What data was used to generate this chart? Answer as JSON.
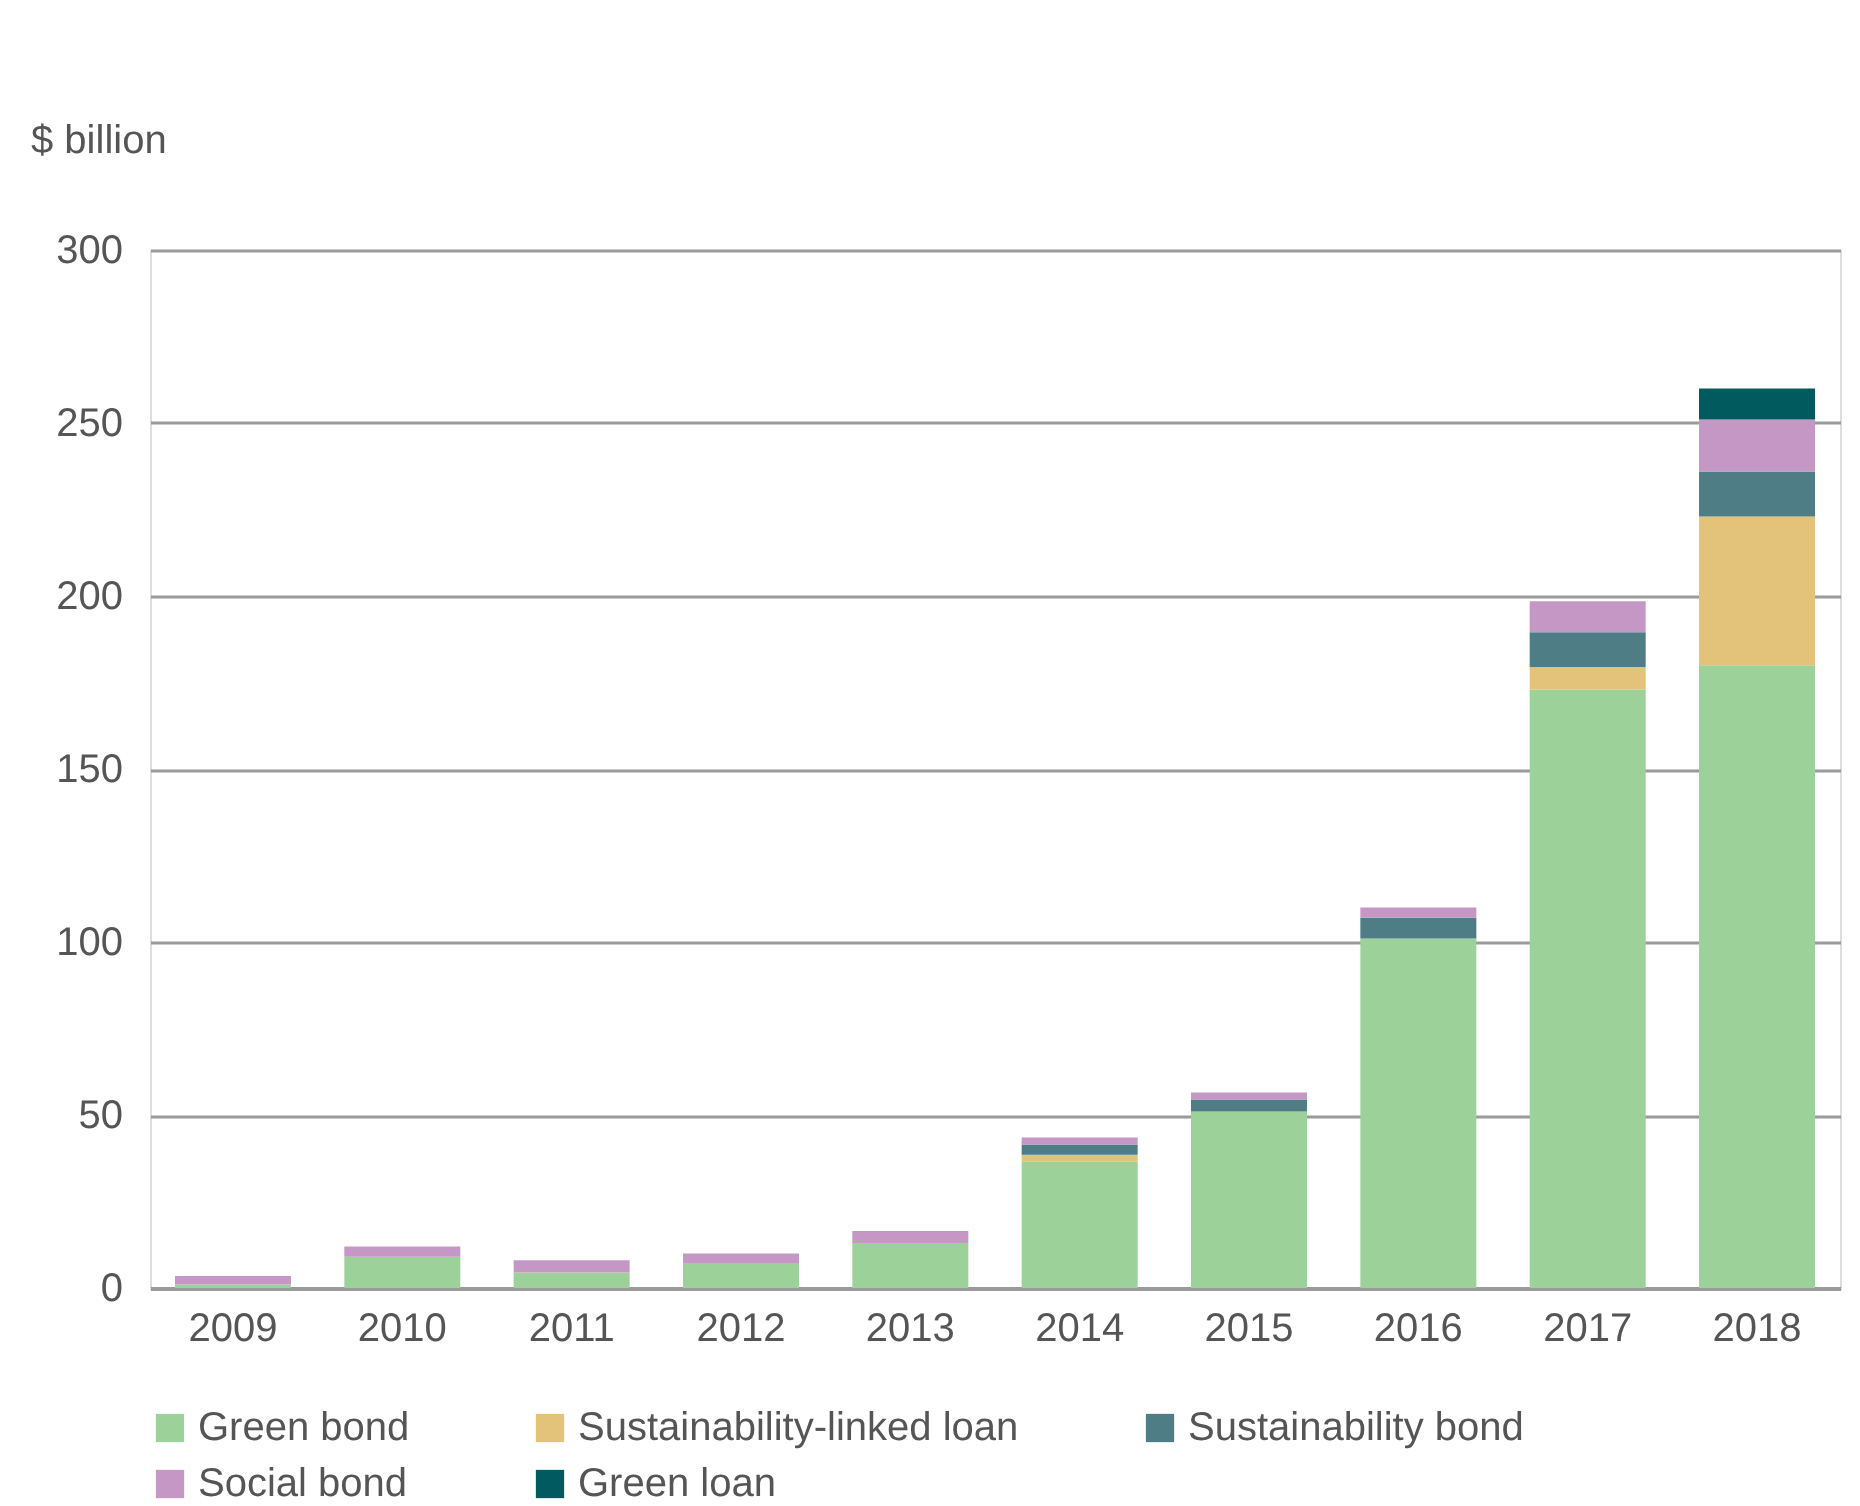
{
  "chart_data": {
    "type": "bar",
    "stacked": true,
    "ylabel": "$ billion",
    "categories": [
      "2009",
      "2010",
      "2011",
      "2012",
      "2013",
      "2014",
      "2015",
      "2016",
      "2017",
      "2018"
    ],
    "series": [
      {
        "name": "Green bond",
        "color": "#9dd19a",
        "values": [
          1,
          9,
          4.5,
          7,
          13,
          36.5,
          51,
          101,
          173,
          180
        ]
      },
      {
        "name": "Sustainability-linked loan",
        "color": "#e3c27a",
        "values": [
          0,
          0,
          0,
          0,
          0,
          2,
          0,
          0,
          6.5,
          43
        ]
      },
      {
        "name": "Sustainability bond",
        "color": "#4e7d85",
        "values": [
          0,
          0,
          0,
          0,
          0,
          3,
          3.5,
          6,
          10,
          13
        ]
      },
      {
        "name": "Social bond",
        "color": "#c497c4",
        "values": [
          2.5,
          3,
          3.5,
          3,
          3.5,
          2,
          2,
          3,
          9,
          15
        ]
      },
      {
        "name": "Green loan",
        "color": "#005a5e",
        "values": [
          0,
          0,
          0,
          0,
          0,
          0,
          0,
          0,
          0,
          9
        ]
      }
    ],
    "ylim": [
      0,
      300
    ],
    "yticks": [
      0,
      50,
      100,
      150,
      200,
      250,
      300
    ],
    "grid": "y",
    "legend": "bottom"
  }
}
